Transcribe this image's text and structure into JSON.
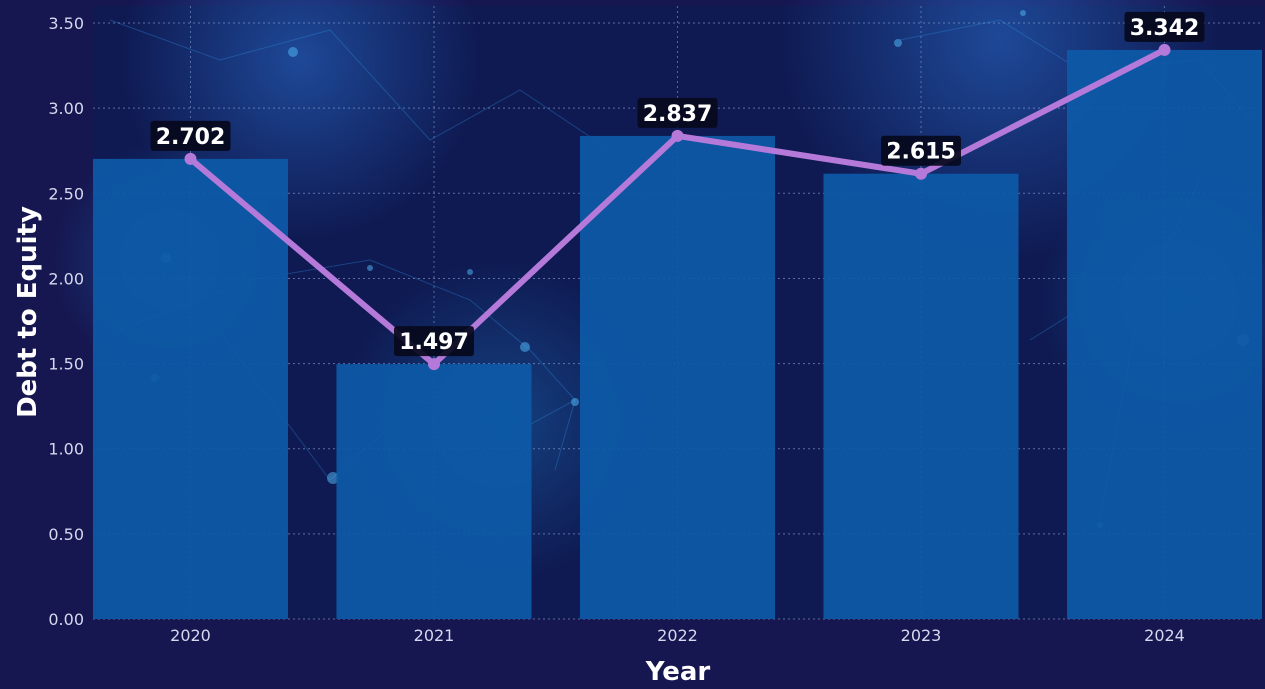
{
  "chart_data": {
    "type": "bar",
    "categories": [
      "2020",
      "2021",
      "2022",
      "2023",
      "2024"
    ],
    "values": [
      2.702,
      1.497,
      2.837,
      2.615,
      3.342
    ],
    "data_labels": [
      "2.702",
      "1.497",
      "2.837",
      "2.615",
      "3.342"
    ],
    "overlay_line": true,
    "xlabel": "Year",
    "ylabel": "Debt to Equity",
    "ylim": [
      0,
      3.6
    ],
    "yticks": [
      0,
      0.5,
      1.0,
      1.5,
      2.0,
      2.5,
      3.0,
      3.5
    ],
    "ytick_labels": [
      "0.00",
      "0.50",
      "1.00",
      "1.50",
      "2.00",
      "2.50",
      "3.00",
      "3.50"
    ],
    "grid": true,
    "colors": {
      "background": "#161650",
      "plot_background": "#0f1a52",
      "bar": "#0d5aa8",
      "line": "#b57ad9",
      "label_box": "#06091c"
    }
  }
}
